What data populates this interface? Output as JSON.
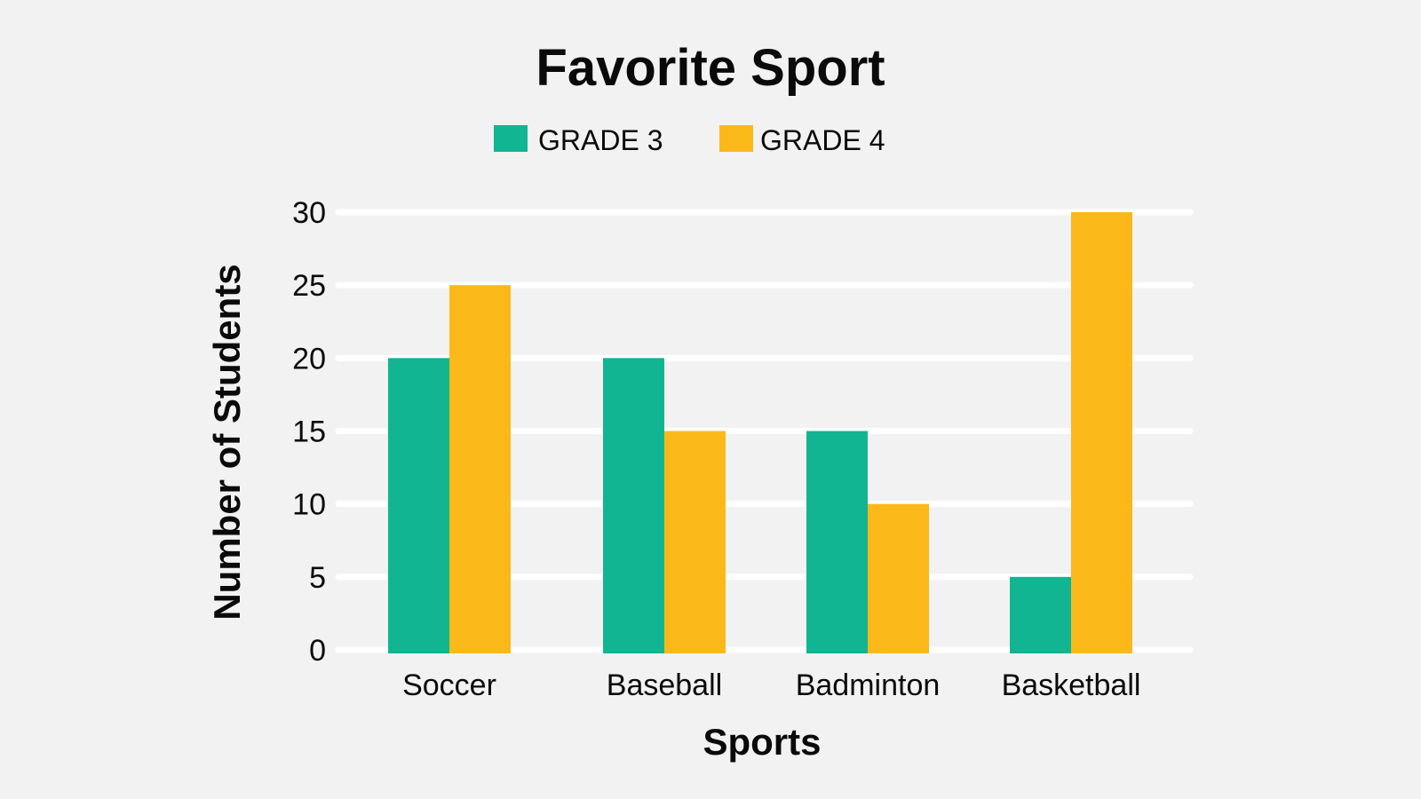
{
  "chart_data": {
    "type": "bar",
    "title": "Favorite Sport",
    "xlabel": "Sports",
    "ylabel": "Number of Students",
    "categories": [
      "Soccer",
      "Baseball",
      "Badminton",
      "Basketball"
    ],
    "series": [
      {
        "name": "GRADE 3",
        "color": "#11b592",
        "values": [
          20,
          20,
          15,
          5
        ]
      },
      {
        "name": "GRADE 4",
        "color": "#fbb919",
        "values": [
          25,
          15,
          10,
          30
        ]
      }
    ],
    "ylim": [
      0,
      30
    ],
    "yticks": [
      0,
      5,
      10,
      15,
      20,
      25,
      30
    ],
    "grid": true,
    "legend_position": "top-center"
  }
}
